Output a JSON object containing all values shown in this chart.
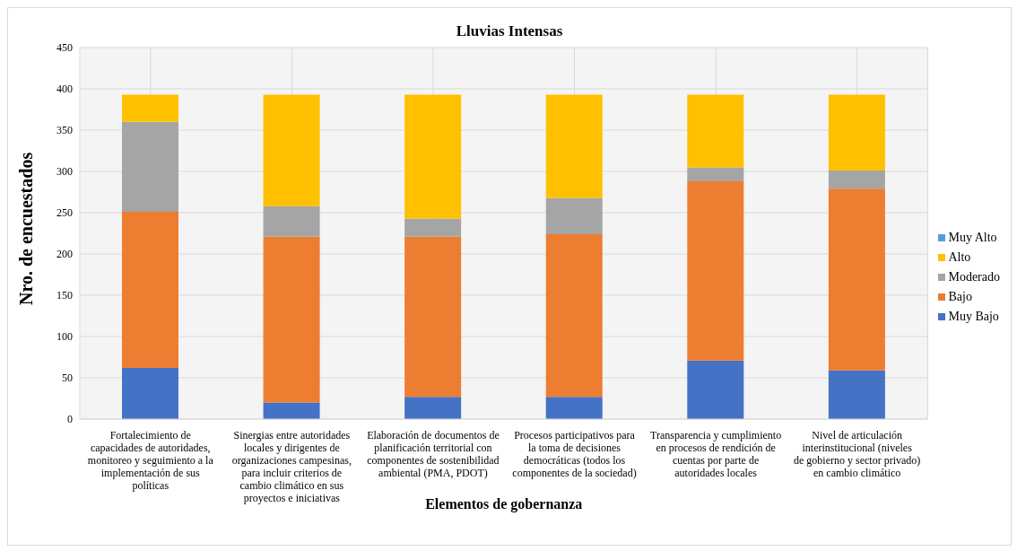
{
  "chart_data": {
    "type": "bar",
    "title": "Lluvias Intensas",
    "xlabel": "Elementos de gobernanza",
    "ylabel": "Nro. de encuestados",
    "categories": [
      "Fortalecimiento de capacidades de autoridades, monitoreo y seguimiento a la implementación de sus políticas",
      "Sinergias entre autoridades locales y dirigentes de organizaciones campesinas, para incluir criterios de cambio climático en sus proyectos e iniciativas",
      "Elaboración de documentos de planificación territorial con componentes de sostenibilidad ambiental (PMA, PDOT)",
      "Procesos participativos para la toma de decisiones democráticas (todos los componentes de la sociedad)",
      "Transparencia y cumplimiento en procesos de rendición de cuentas por parte de autoridades locales",
      "Nivel de articulación interinstitucional (niveles de gobierno y sector privado)  en cambio climático"
    ],
    "series": [
      {
        "name": "Muy Bajo",
        "color": "#4472c4",
        "values": [
          62,
          20,
          27,
          27,
          71,
          59
        ]
      },
      {
        "name": "Bajo",
        "color": "#ed7d31",
        "values": [
          189,
          201,
          194,
          197,
          217,
          220
        ]
      },
      {
        "name": "Moderado",
        "color": "#a5a5a5",
        "values": [
          109,
          37,
          22,
          44,
          17,
          22
        ]
      },
      {
        "name": "Alto",
        "color": "#ffc000",
        "values": [
          33,
          135,
          150,
          125,
          88,
          92
        ]
      },
      {
        "name": "Muy Alto",
        "color": "#5b9bd5",
        "values": [
          0,
          0,
          0,
          0,
          0,
          0
        ]
      }
    ],
    "stacked": true,
    "ylim": [
      0,
      450
    ],
    "yticks": [
      0,
      50,
      100,
      150,
      200,
      250,
      300,
      350,
      400,
      450
    ],
    "grid": true,
    "legend": "right"
  }
}
